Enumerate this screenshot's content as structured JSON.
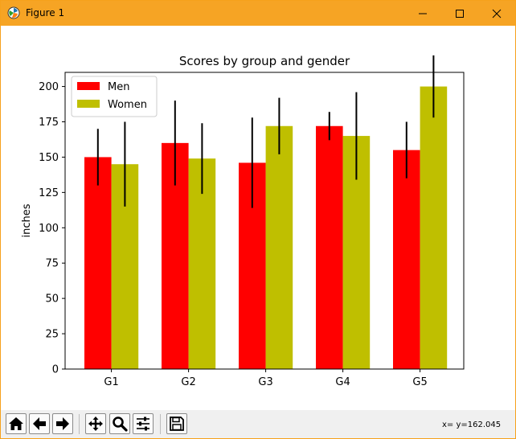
{
  "window": {
    "title": "Figure 1"
  },
  "toolbar": {
    "buttons": [
      {
        "name": "home-button",
        "icon": "home-icon"
      },
      {
        "name": "back-button",
        "icon": "arrow-left-icon"
      },
      {
        "name": "forward-button",
        "icon": "arrow-right-icon"
      },
      {
        "name": "pan-button",
        "icon": "move-icon"
      },
      {
        "name": "zoom-button",
        "icon": "magnifier-icon"
      },
      {
        "name": "configure-subplots-button",
        "icon": "sliders-icon"
      },
      {
        "name": "save-button",
        "icon": "floppy-disk-icon"
      }
    ],
    "coordinates": "x= y=162.045"
  },
  "colors": {
    "titlebar": "#f6a424",
    "men": "#ff0000",
    "women": "#bfbf00",
    "errorbar": "#000000"
  },
  "chart_data": {
    "type": "bar",
    "title": "Scores by group and gender",
    "xlabel": "",
    "ylabel": "inches",
    "categories": [
      "G1",
      "G2",
      "G3",
      "G4",
      "G5"
    ],
    "series": [
      {
        "name": "Men",
        "color": "#ff0000",
        "values": [
          150,
          160,
          146,
          172,
          155
        ],
        "errors": [
          20,
          30,
          32,
          10,
          20
        ]
      },
      {
        "name": "Women",
        "color": "#bfbf00",
        "values": [
          145,
          149,
          172,
          165,
          200
        ],
        "errors": [
          30,
          25,
          20,
          31,
          22
        ]
      }
    ],
    "ylim": [
      0,
      210
    ],
    "yticks": [
      0,
      25,
      50,
      75,
      100,
      125,
      150,
      175,
      200
    ],
    "grid": false,
    "legend": "upper-left"
  }
}
